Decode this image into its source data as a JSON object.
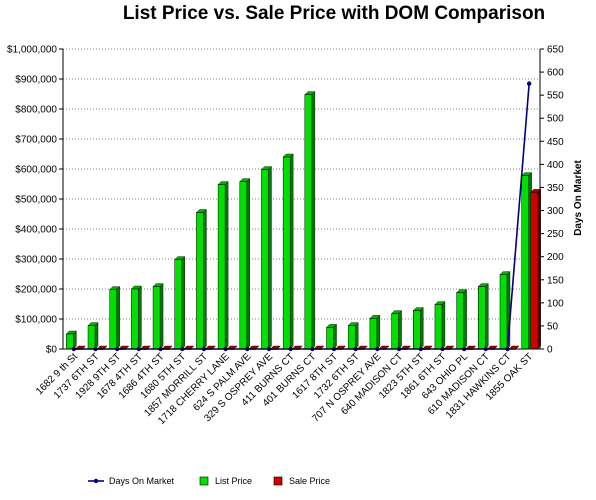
{
  "chart_data": {
    "type": "bar",
    "title": "List Price vs. Sale Price with DOM Comparison",
    "ylabel": "",
    "y2label": "Days On Market",
    "ylim": [
      0,
      1000000
    ],
    "y2lim": [
      0,
      650
    ],
    "y_ticks": [
      "$0",
      "$100,000",
      "$200,000",
      "$300,000",
      "$400,000",
      "$500,000",
      "$600,000",
      "$700,000",
      "$800,000",
      "$900,000",
      "$1,000,000"
    ],
    "y2_ticks": [
      "0",
      "50",
      "100",
      "150",
      "200",
      "250",
      "300",
      "350",
      "400",
      "450",
      "500",
      "550",
      "600",
      "650"
    ],
    "grid": true,
    "legend_position": "bottom",
    "categories": [
      "1682 9 th St",
      "1737 6TH ST",
      "1928 9TH ST",
      "1678 4TH ST",
      "1686 4TH ST",
      "1680 5TH ST",
      "1857 MORRILL ST",
      "1718 CHERRY LANE",
      "624 S PALM AVE",
      "329 S OSPREY AVE",
      "411 BURNS CT",
      "401 BURNS CT",
      "1617 8TH ST",
      "1732 6TH ST",
      "707 N OSPREY AVE",
      "640 MADISON CT",
      "1823 5TH ST",
      "1861 6TH ST",
      "643 OHIO PL",
      "610 MADISON CT",
      "1831 HAWKINS CT",
      "1855 OAK ST"
    ],
    "series": [
      {
        "name": "Days On Market",
        "kind": "line",
        "axis": "right",
        "color": "#000080",
        "values": [
          0,
          0,
          0,
          0,
          0,
          0,
          0,
          0,
          0,
          0,
          0,
          0,
          0,
          0,
          0,
          0,
          0,
          0,
          0,
          0,
          0,
          575
        ]
      },
      {
        "name": "List Price",
        "kind": "bar",
        "axis": "left",
        "color": "#00e000",
        "values": [
          50000,
          78000,
          198000,
          200000,
          208000,
          298000,
          455000,
          548000,
          558000,
          598000,
          640000,
          848000,
          72000,
          78000,
          102000,
          118000,
          128000,
          148000,
          188000,
          208000,
          248000,
          578000
        ]
      },
      {
        "name": "Sale Price",
        "kind": "bar",
        "axis": "left",
        "color": "#d00000",
        "values": [
          0,
          0,
          0,
          0,
          0,
          0,
          0,
          0,
          0,
          0,
          0,
          0,
          0,
          0,
          0,
          0,
          0,
          0,
          0,
          0,
          0,
          522000
        ]
      }
    ]
  }
}
